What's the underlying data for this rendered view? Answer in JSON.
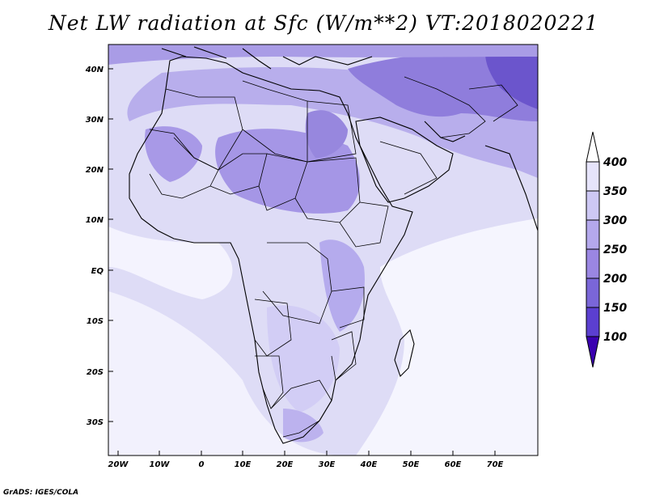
{
  "title": "Net LW radiation at Sfc (W/m**2) VT:2018020221",
  "credit": "GrADS: IGES/COLA",
  "map": {
    "lon_range": [
      -23,
      80
    ],
    "lat_range": [
      -37,
      45
    ],
    "lat_labels": [
      "40N",
      "30N",
      "20N",
      "10N",
      "EQ",
      "10S",
      "20S",
      "30S"
    ],
    "lon_labels": [
      "20W",
      "10W",
      "0",
      "10E",
      "20E",
      "30E",
      "40E",
      "50E",
      "60E",
      "70E"
    ],
    "coastlines": true,
    "country_borders": true
  },
  "colorbar": {
    "levels": [
      "100",
      "150",
      "200",
      "250",
      "300",
      "350",
      "400"
    ],
    "colors": [
      "#3a00b0",
      "#5b3fd0",
      "#7a66d8",
      "#9a86e2",
      "#b4a8ec",
      "#cdc8f4",
      "#e6e4fb"
    ]
  }
}
